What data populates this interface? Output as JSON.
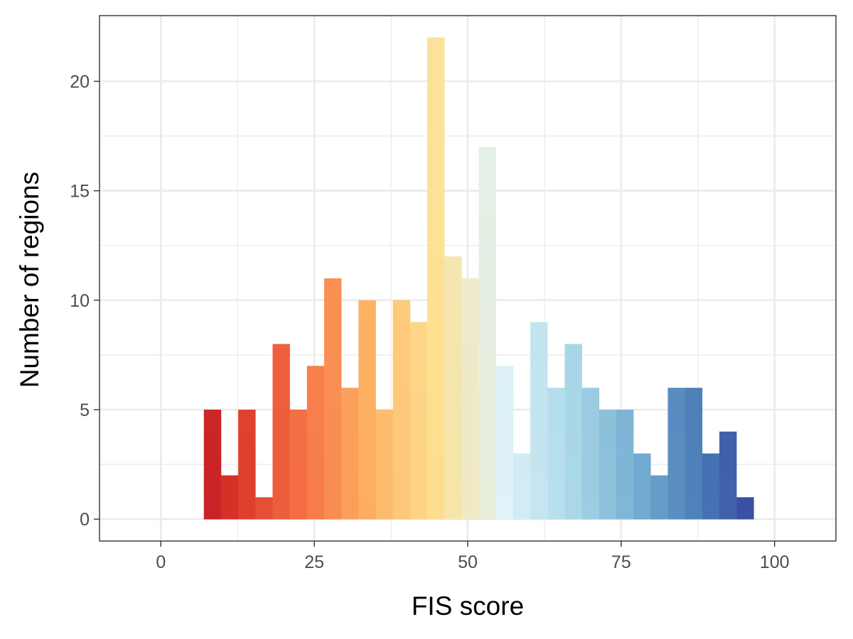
{
  "chart_data": {
    "type": "bar",
    "xlabel": "FIS score",
    "ylabel": "Number of regions",
    "xlim": [
      -10,
      110
    ],
    "ylim": [
      -1,
      23
    ],
    "x_ticks": [
      "0",
      "25",
      "50",
      "75",
      "100"
    ],
    "y_ticks": [
      "0",
      "5",
      "10",
      "15",
      "20"
    ],
    "grid": true,
    "bin_width": 2.8,
    "bins": [
      {
        "x0": 7.0,
        "x1": 9.8,
        "value": 5
      },
      {
        "x0": 9.8,
        "x1": 12.6,
        "value": 2
      },
      {
        "x0": 12.6,
        "x1": 15.4,
        "value": 5
      },
      {
        "x0": 15.4,
        "x1": 18.2,
        "value": 1
      },
      {
        "x0": 18.2,
        "x1": 21.0,
        "value": 8
      },
      {
        "x0": 21.0,
        "x1": 23.8,
        "value": 5
      },
      {
        "x0": 23.8,
        "x1": 26.6,
        "value": 7
      },
      {
        "x0": 26.6,
        "x1": 29.4,
        "value": 11
      },
      {
        "x0": 29.4,
        "x1": 32.2,
        "value": 6
      },
      {
        "x0": 32.2,
        "x1": 35.0,
        "value": 10
      },
      {
        "x0": 35.0,
        "x1": 37.8,
        "value": 5
      },
      {
        "x0": 37.8,
        "x1": 40.6,
        "value": 10
      },
      {
        "x0": 40.6,
        "x1": 43.4,
        "value": 9
      },
      {
        "x0": 43.4,
        "x1": 46.2,
        "value": 22
      },
      {
        "x0": 46.2,
        "x1": 49.0,
        "value": 12
      },
      {
        "x0": 49.0,
        "x1": 51.8,
        "value": 11
      },
      {
        "x0": 51.8,
        "x1": 54.6,
        "value": 17
      },
      {
        "x0": 54.6,
        "x1": 57.4,
        "value": 7
      },
      {
        "x0": 57.4,
        "x1": 60.2,
        "value": 3
      },
      {
        "x0": 60.2,
        "x1": 63.0,
        "value": 9
      },
      {
        "x0": 63.0,
        "x1": 65.8,
        "value": 6
      },
      {
        "x0": 65.8,
        "x1": 68.6,
        "value": 8
      },
      {
        "x0": 68.6,
        "x1": 71.4,
        "value": 6
      },
      {
        "x0": 71.4,
        "x1": 74.2,
        "value": 5
      },
      {
        "x0": 74.2,
        "x1": 77.0,
        "value": 5
      },
      {
        "x0": 77.0,
        "x1": 79.8,
        "value": 3
      },
      {
        "x0": 79.8,
        "x1": 82.6,
        "value": 2
      },
      {
        "x0": 82.6,
        "x1": 85.4,
        "value": 6
      },
      {
        "x0": 85.4,
        "x1": 88.2,
        "value": 6
      },
      {
        "x0": 88.2,
        "x1": 91.0,
        "value": 3
      },
      {
        "x0": 91.0,
        "x1": 93.8,
        "value": 4
      },
      {
        "x0": 93.8,
        "x1": 96.6,
        "value": 1
      }
    ],
    "fill_scale": {
      "domain": [
        0,
        100
      ],
      "palette": "RdYlBu",
      "colors": [
        "#a50026",
        "#d73027",
        "#f46d43",
        "#fdae61",
        "#fee090",
        "#e0f3f8",
        "#abd9e9",
        "#74add1",
        "#4575b4",
        "#313695"
      ]
    },
    "background": "#ffffff",
    "grid_color": "#ebebeb",
    "panel_border_color": "#333333"
  }
}
